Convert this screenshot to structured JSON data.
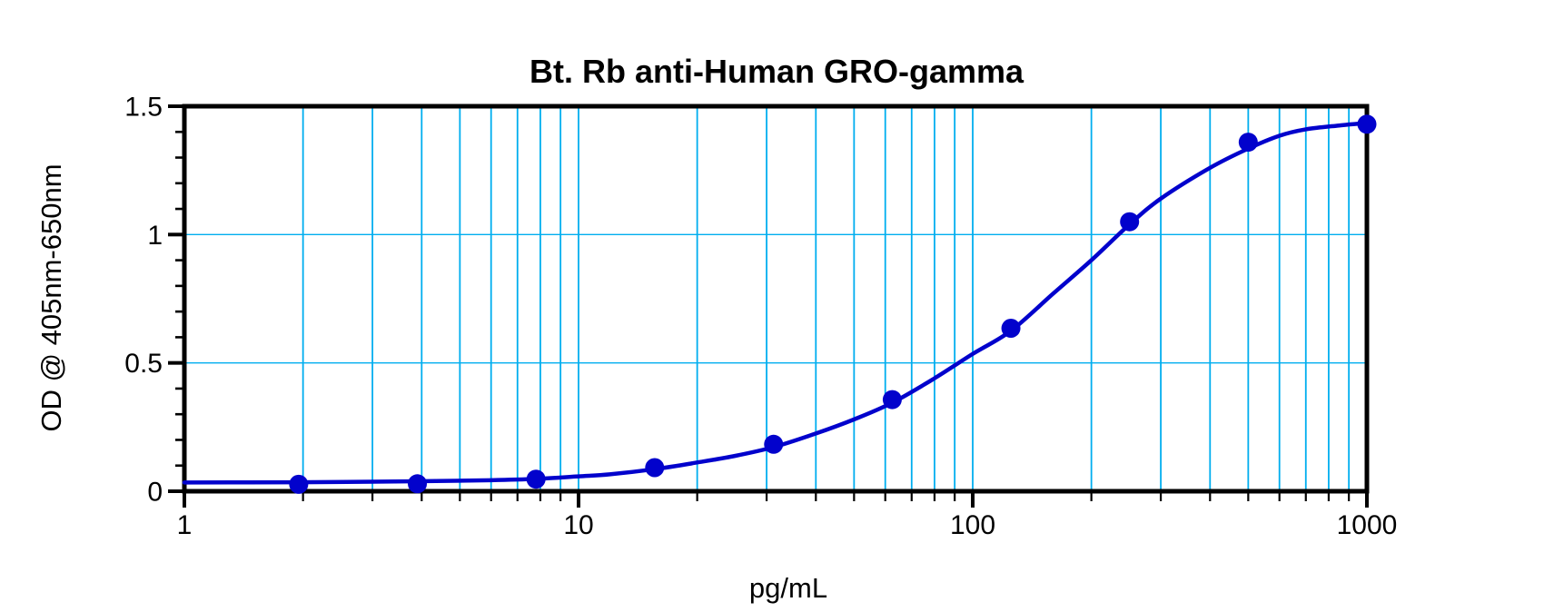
{
  "title": "Bt. Rb anti-Human GRO-gamma",
  "x_axis": {
    "label": "pg/mL",
    "scale": "log",
    "range": [
      1,
      1000
    ],
    "major_ticks": [
      {
        "value": 1,
        "label": "1"
      },
      {
        "value": 10,
        "label": "10"
      },
      {
        "value": 100,
        "label": "100"
      },
      {
        "value": 1000,
        "label": "1000"
      }
    ],
    "minor_tick_values": [
      2,
      3,
      4,
      5,
      6,
      7,
      8,
      9,
      20,
      30,
      40,
      50,
      60,
      70,
      80,
      90,
      200,
      300,
      400,
      500,
      600,
      700,
      800,
      900
    ]
  },
  "y_axis": {
    "label": "OD @ 405nm-650nm",
    "scale": "linear",
    "range": [
      0,
      1.5
    ],
    "major_ticks": [
      {
        "value": 0,
        "label": "0"
      },
      {
        "value": 0.5,
        "label": "0.5"
      },
      {
        "value": 1,
        "label": "1"
      },
      {
        "value": 1.5,
        "label": "1.5"
      }
    ],
    "minor_tick_values": [
      0.1,
      0.2,
      0.3,
      0.4,
      0.6,
      0.7,
      0.8,
      0.9,
      1.1,
      1.2,
      1.3,
      1.4
    ]
  },
  "gridlines": {
    "color": "#00AEEF",
    "vertical_values": [
      2,
      3,
      4,
      5,
      6,
      7,
      8,
      9,
      10,
      20,
      30,
      40,
      50,
      60,
      70,
      80,
      90,
      100,
      200,
      300,
      400,
      500,
      600,
      700,
      800,
      900
    ],
    "horizontal_values": [
      0.5,
      1.0
    ]
  },
  "style": {
    "axis_color": "#000000",
    "data_color": "#0202CC",
    "background": "#ffffff"
  },
  "chart_data": {
    "type": "scatter",
    "title": "Bt. Rb anti-Human GRO-gamma",
    "xlabel": "pg/mL",
    "ylabel": "OD @ 405nm-650nm",
    "x_scale": "log",
    "xlim": [
      1,
      1000
    ],
    "ylim": [
      0,
      1.5
    ],
    "grid": true,
    "legend": false,
    "series": [
      {
        "name": "standard-data-points",
        "type": "scatter",
        "marker": "circle",
        "color": "#0202CC",
        "x": [
          1.95,
          3.9,
          7.8,
          15.6,
          31.25,
          62.5,
          125,
          250,
          500,
          1000
        ],
        "y": [
          0.027,
          0.029,
          0.047,
          0.092,
          0.183,
          0.357,
          0.635,
          1.05,
          1.36,
          1.43
        ]
      },
      {
        "name": "fitted-standard-curve",
        "type": "line",
        "color": "#0202CC",
        "x": [
          1,
          1.95,
          3,
          3.9,
          6,
          7.8,
          10,
          12,
          15.6,
          20,
          25,
          31.25,
          40,
          50,
          62.5,
          80,
          100,
          125,
          160,
          200,
          250,
          300,
          400,
          500,
          600,
          700,
          850,
          1000
        ],
        "y": [
          0.034,
          0.035,
          0.037,
          0.039,
          0.043,
          0.048,
          0.058,
          0.066,
          0.086,
          0.112,
          0.138,
          0.172,
          0.225,
          0.28,
          0.345,
          0.44,
          0.535,
          0.625,
          0.77,
          0.9,
          1.04,
          1.14,
          1.26,
          1.335,
          1.385,
          1.41,
          1.425,
          1.435
        ]
      }
    ]
  }
}
